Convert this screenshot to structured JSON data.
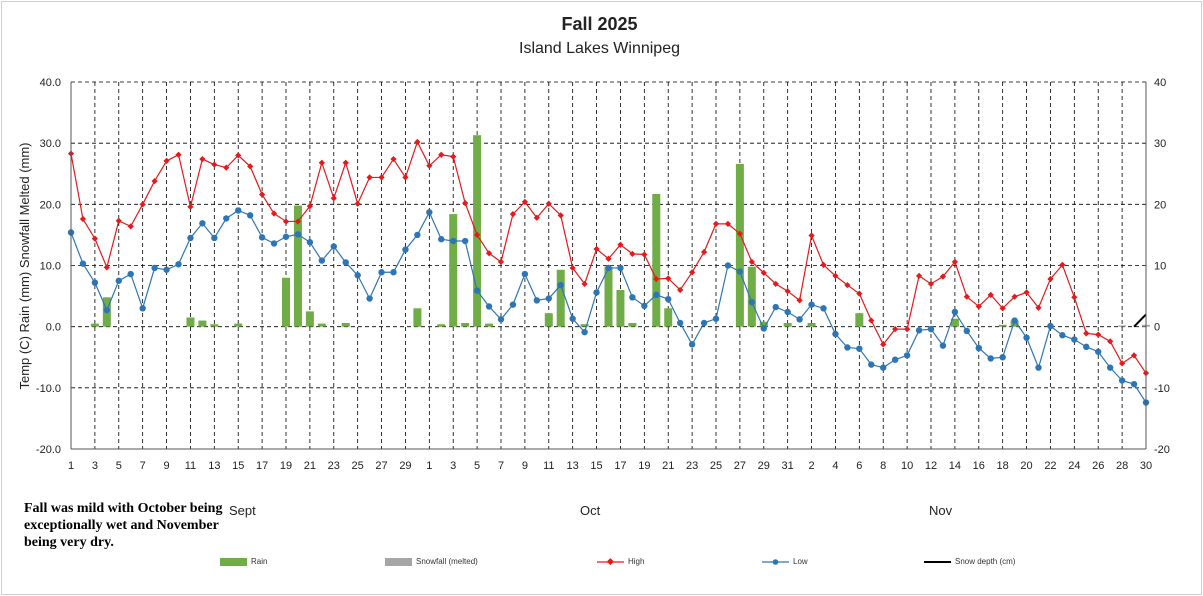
{
  "title": "Fall 2025",
  "subtitle": "Island Lakes Winnipeg",
  "note": "Fall was mild with October being exceptionally wet and November being very dry.",
  "months": [
    "Sept",
    "Oct",
    "Nov"
  ],
  "chart_data": {
    "type": "bar+line",
    "title": "Fall 2025",
    "subtitle": "Island Lakes Winnipeg",
    "ylabel": "Temp (C) Rain (mm) Snowfall Melted (mm)",
    "ylim": [
      -20,
      40
    ],
    "y2lim": [
      -20,
      40
    ],
    "yticks": [
      "40.0",
      "30.0",
      "20.0",
      "10.0",
      "0.0",
      "-10.0",
      "-20.0"
    ],
    "y2ticks": [
      "40",
      "30",
      "20",
      "10",
      "0",
      "-10",
      "-20"
    ],
    "xticks": [
      "1",
      "3",
      "5",
      "7",
      "9",
      "11",
      "13",
      "15",
      "17",
      "19",
      "21",
      "23",
      "25",
      "27",
      "29",
      "1",
      "3",
      "5",
      "7",
      "9",
      "11",
      "13",
      "15",
      "17",
      "19",
      "21",
      "23",
      "25",
      "27",
      "29",
      "31",
      "2",
      "4",
      "6",
      "8",
      "10",
      "12",
      "14",
      "16",
      "18",
      "20",
      "22",
      "24",
      "26",
      "28",
      "30"
    ],
    "grid": true,
    "legend_position": "bottom",
    "legend": [
      "Rain",
      "Snowfall (melted)",
      "High",
      "Low",
      "Snow depth (cm)"
    ],
    "colors": {
      "rain": "#70ad47",
      "snow": "#a6a6a6",
      "high": "#e41a1c",
      "low": "#2e75b6",
      "depth": "#000000"
    },
    "high": [
      28.3,
      17.6,
      14.4,
      9.7,
      17.3,
      16.4,
      20.0,
      23.8,
      27.1,
      28.1,
      19.6,
      27.4,
      26.5,
      26.0,
      28.0,
      26.2,
      21.6,
      18.5,
      17.2,
      17.2,
      19.7,
      26.8,
      21.0,
      26.8,
      20.1,
      24.4,
      24.4,
      27.4,
      24.4,
      30.2,
      26.3,
      28.1,
      27.8,
      20.2,
      15.0,
      12.0,
      10.6,
      18.4,
      20.4,
      17.8,
      20.1,
      18.2,
      9.6,
      7.0,
      12.7,
      11.1,
      13.4,
      11.9,
      11.8,
      7.8,
      7.9,
      6.0,
      8.9,
      12.2,
      16.8,
      16.8,
      15.2,
      10.6,
      8.8,
      7.0,
      5.8,
      4.3,
      14.9,
      10.1,
      8.3,
      6.8,
      5.4,
      1.0,
      -2.9,
      -0.4,
      -0.4,
      8.3,
      7.0,
      8.2,
      10.6,
      4.9,
      3.3,
      5.2,
      3.0,
      4.9,
      5.6,
      3.1,
      7.8,
      10.1,
      4.8,
      -1.1,
      -1.3,
      -2.4,
      -6.0,
      -4.7,
      -7.6
    ],
    "low": [
      15.4,
      10.3,
      7.2,
      2.7,
      7.5,
      8.6,
      3.0,
      9.6,
      9.3,
      10.2,
      14.5,
      16.9,
      14.5,
      17.7,
      19.0,
      18.2,
      14.6,
      13.6,
      14.7,
      15.1,
      13.8,
      10.8,
      13.1,
      10.5,
      8.4,
      4.6,
      8.9,
      8.9,
      12.6,
      15.0,
      18.7,
      14.3,
      14.0,
      14.0,
      5.9,
      3.3,
      1.2,
      3.6,
      8.6,
      4.3,
      4.6,
      6.8,
      1.3,
      -0.9,
      5.6,
      9.6,
      9.6,
      4.8,
      3.4,
      5.2,
      4.5,
      0.6,
      -2.9,
      0.6,
      1.3,
      10.0,
      9.0,
      4.0,
      -0.3,
      3.2,
      2.4,
      1.2,
      3.6,
      3.0,
      -1.2,
      -3.4,
      -3.6,
      -6.2,
      -6.7,
      -5.4,
      -4.7,
      -0.6,
      -0.4,
      -3.1,
      2.4,
      -0.7,
      -3.5,
      -5.2,
      -5.0,
      1.0,
      -1.8,
      -6.7,
      0.1,
      -1.4,
      -2.1,
      -3.3,
      -4.1,
      -6.7,
      -8.8,
      -9.4,
      -12.4
    ],
    "rain": [
      0,
      0,
      0.5,
      4.8,
      0,
      0,
      0,
      0,
      0,
      0,
      1.5,
      1.0,
      0.4,
      0,
      0.5,
      0,
      0,
      0,
      8.0,
      19.8,
      2.5,
      0.5,
      0,
      0.6,
      0,
      0,
      0,
      0,
      0,
      3.0,
      0,
      0.4,
      18.4,
      0.6,
      31.3,
      0.5,
      0,
      0,
      0,
      0,
      2.2,
      9.3,
      0,
      0.4,
      0,
      9.8,
      6.0,
      0.6,
      0,
      21.7,
      3.0,
      0,
      0,
      0,
      0,
      0,
      26.6,
      9.8,
      0.8,
      0,
      0.6,
      0,
      0.6,
      0,
      0,
      0,
      2.2,
      0,
      0,
      0,
      0,
      0,
      0,
      0,
      1.3,
      0,
      0,
      0,
      0.3,
      1.0,
      0,
      0,
      0,
      0,
      0,
      0,
      0,
      0,
      0,
      0,
      0
    ],
    "snowfall_melted": [
      0,
      0,
      0,
      0,
      0,
      0,
      0,
      0,
      0,
      0,
      0,
      0,
      0,
      0,
      0,
      0,
      0,
      0,
      0,
      0,
      0,
      0,
      0,
      0,
      0,
      0,
      0,
      0,
      0,
      0,
      0,
      0,
      0,
      0,
      0,
      0,
      0,
      0,
      0,
      0,
      0,
      0,
      0,
      0,
      0,
      0,
      0,
      0,
      0,
      0,
      0,
      0,
      0,
      0,
      0,
      0,
      0,
      0,
      0,
      0,
      0,
      0,
      0,
      0,
      0,
      0,
      0,
      0,
      0,
      0,
      0,
      0,
      0,
      0,
      0,
      0,
      0,
      0,
      0,
      0,
      0,
      0,
      0,
      0,
      0,
      0,
      0,
      0,
      0.2,
      0,
      0.3
    ],
    "snow_depth": [
      0,
      0,
      0,
      0,
      0,
      0,
      0,
      0,
      0,
      0,
      0,
      0,
      0,
      0,
      0,
      0,
      0,
      0,
      0,
      0,
      0,
      0,
      0,
      0,
      0,
      0,
      0,
      0,
      0,
      0,
      0,
      0,
      0,
      0,
      0,
      0,
      0,
      0,
      0,
      0,
      0,
      0,
      0,
      0,
      0,
      0,
      0,
      0,
      0,
      0,
      0,
      0,
      0,
      0,
      0,
      0,
      0,
      0,
      0,
      0,
      0,
      0,
      0,
      0,
      0,
      0,
      0,
      0,
      0,
      0,
      0,
      0,
      0,
      0,
      0,
      0,
      0,
      0,
      0,
      0,
      0,
      0,
      0,
      0,
      0,
      0,
      0,
      0,
      0,
      0,
      2
    ]
  }
}
